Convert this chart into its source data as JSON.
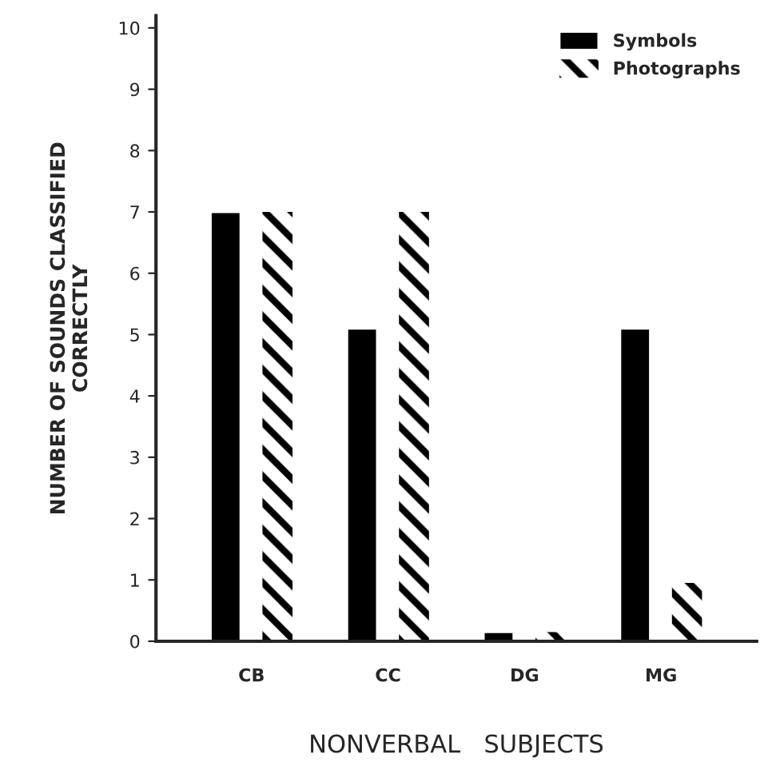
{
  "chart_data": {
    "type": "bar",
    "xlabel": "NONVERBAL   SUBJECTS",
    "ylabel": "NUMBER OF SOUNDS CLASSIFIED\nCORRECTLY",
    "categories": [
      "CB",
      "CC",
      "DG",
      "MG"
    ],
    "series": [
      {
        "name": "Symbols",
        "color": "#000000",
        "values": [
          7,
          5.1,
          0.15,
          5.1
        ]
      },
      {
        "name": "Photographs",
        "color": "#000000",
        "values": [
          7,
          7,
          0.15,
          0.95
        ]
      }
    ],
    "ylim": [
      0,
      10.2
    ],
    "yticks": [
      0,
      1,
      2,
      3,
      4,
      5,
      6,
      7,
      8,
      9,
      10
    ],
    "grid": false,
    "legend": "top right"
  }
}
